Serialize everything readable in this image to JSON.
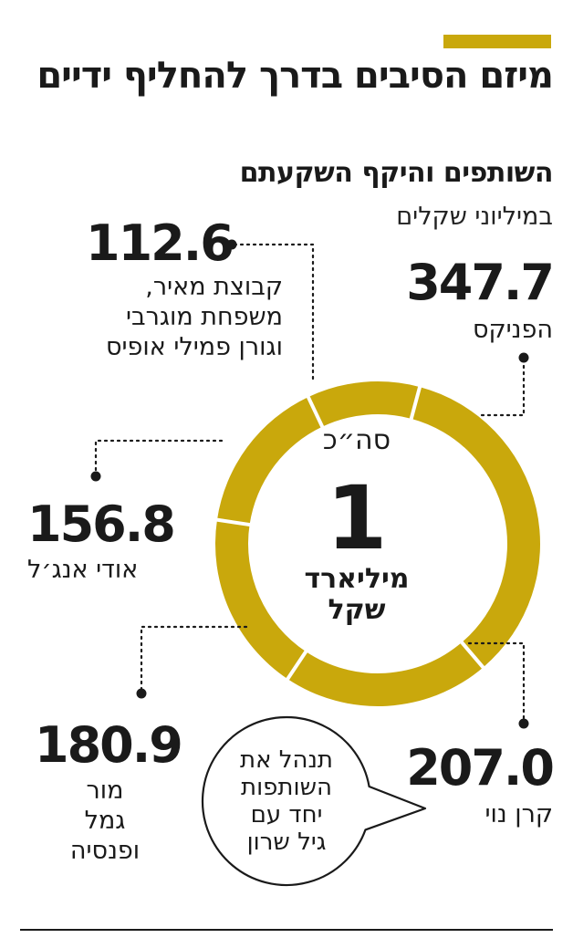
{
  "header": {
    "title": "מיזם הסיבים בדרך להחליף ידיים",
    "subtitle": "השותפים והיקף השקעתם",
    "unit": "במיליוני שקלים"
  },
  "colors": {
    "accent": "#c9a80c",
    "ring": "#c9a80c",
    "separator": "#ffffff",
    "text": "#1a1a1a"
  },
  "center": {
    "caption": "סה״כ",
    "value": "1",
    "unit": "מיליארד\nשקל"
  },
  "bubble": {
    "text": "תנהל את\nהשותפות\nיחד עם\nגיל שרון"
  },
  "chart_data": {
    "type": "pie",
    "donut": true,
    "total_label": "1 מיליארד שקל",
    "unit": "במיליוני שקלים",
    "slices": [
      {
        "label": "הפניקס",
        "value": 347.7,
        "value_text": "347.7"
      },
      {
        "label": "קרן נוי",
        "value": 207.0,
        "value_text": "207.0"
      },
      {
        "label": "מור גמל ופנסיה",
        "value": 180.9,
        "value_text": "180.9"
      },
      {
        "label": "אודי אנג׳ל",
        "value": 156.8,
        "value_text": "156.8"
      },
      {
        "label": "קבוצת מאיר, משפחת מוגרבי וגורן פמילי אופיס",
        "value": 112.6,
        "value_text": "112.6"
      }
    ],
    "labels_display": [
      "הפניקס",
      "קרן נוי",
      "מור\nגמל\nופנסיה",
      "אודי אנג׳ל",
      "קבוצת מאיר,\nמשפחת מוגרבי\nוגורן פמילי אופיס"
    ]
  }
}
